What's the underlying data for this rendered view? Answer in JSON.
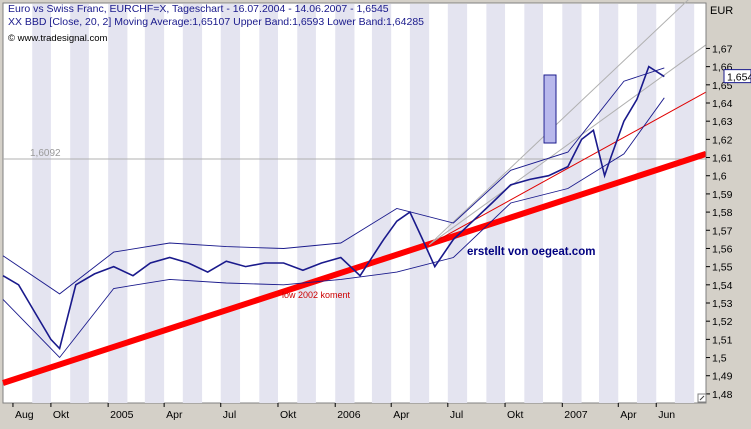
{
  "header": {
    "line1": "Euro vs Swiss Franc, EURCHF=X, Tageschart - 16.07.2004 - 14.06.2007 - 1,6545",
    "line2": "XX BBD [Close, 20, 2] Moving Average:1,65107 Upper Band:1,6593 Lower Band:1,64285",
    "copyright": "© www.tradesignal.com"
  },
  "colors": {
    "background": "#ffffff",
    "stripe": "#e4e4f0",
    "price": "#1a1a8c",
    "band": "#1a1a8c",
    "support_thick": "#ff0000",
    "support_thin": "#e00000",
    "channel": "#b0b0b0",
    "annotation_red": "#cc0000",
    "marker_fill": "#b8b8ec"
  },
  "chart_data": {
    "type": "line",
    "title": "Euro vs Swiss Franc, EURCHF=X, Tageschart - 16.07.2004 - 14.06.2007 - 1,6545",
    "ylabel": "EUR",
    "ylim": [
      1.475,
      1.695
    ],
    "xlim": [
      "2004-07-16",
      "2007-08-20"
    ],
    "x_ticks": [
      "Aug",
      "Okt",
      "2005",
      "Apr",
      "Jul",
      "Okt",
      "2006",
      "Apr",
      "Jul",
      "Okt",
      "2007",
      "Apr",
      "Jun"
    ],
    "y_ticks": [
      "1,48",
      "1,49",
      "1,5",
      "1,51",
      "1,52",
      "1,53",
      "1,54",
      "1,55",
      "1,56",
      "1,57",
      "1,58",
      "1,59",
      "1,6",
      "1,61",
      "1,62",
      "1,63",
      "1,64",
      "1,65",
      "1,66",
      "1,67"
    ],
    "last_value_label": "1,6545",
    "reference_label": "1,6092",
    "reference_value": 1.6092,
    "grid": false,
    "series": [
      {
        "name": "EURCHF=X",
        "x": [
          "2004-07-16",
          "2004-08-10",
          "2004-09-05",
          "2004-10-01",
          "2004-10-15",
          "2004-11-10",
          "2004-12-10",
          "2005-01-10",
          "2005-02-10",
          "2005-03-10",
          "2005-04-10",
          "2005-05-10",
          "2005-06-10",
          "2005-07-10",
          "2005-08-10",
          "2005-09-10",
          "2005-10-10",
          "2005-11-10",
          "2005-12-10",
          "2006-01-10",
          "2006-02-10",
          "2006-03-01",
          "2006-03-20",
          "2006-04-10",
          "2006-05-01",
          "2006-05-20",
          "2006-06-10",
          "2006-07-10",
          "2006-08-10",
          "2006-09-10",
          "2006-10-10",
          "2006-11-10",
          "2006-12-10",
          "2007-01-10",
          "2007-02-01",
          "2007-02-20",
          "2007-03-10",
          "2007-03-20",
          "2007-04-10",
          "2007-05-01",
          "2007-05-20",
          "2007-06-14"
        ],
        "y": [
          1.545,
          1.54,
          1.525,
          1.51,
          1.505,
          1.54,
          1.546,
          1.55,
          1.545,
          1.552,
          1.555,
          1.552,
          1.547,
          1.553,
          1.55,
          1.552,
          1.552,
          1.548,
          1.552,
          1.555,
          1.545,
          1.555,
          1.565,
          1.575,
          1.58,
          1.566,
          1.55,
          1.565,
          1.575,
          1.585,
          1.595,
          1.598,
          1.6,
          1.605,
          1.62,
          1.625,
          1.6,
          1.61,
          1.63,
          1.642,
          1.66,
          1.6545
        ]
      },
      {
        "name": "Upper Band",
        "x": [
          "2004-07-16",
          "2004-10-15",
          "2005-01-10",
          "2005-04-10",
          "2005-07-10",
          "2005-10-10",
          "2006-01-10",
          "2006-04-10",
          "2006-07-10",
          "2006-10-10",
          "2007-01-10",
          "2007-04-10",
          "2007-06-14"
        ],
        "y": [
          1.556,
          1.535,
          1.558,
          1.563,
          1.561,
          1.56,
          1.563,
          1.582,
          1.574,
          1.603,
          1.613,
          1.652,
          1.6593
        ]
      },
      {
        "name": "Lower Band",
        "x": [
          "2004-07-16",
          "2004-10-15",
          "2005-01-10",
          "2005-04-10",
          "2005-07-10",
          "2005-10-10",
          "2006-01-10",
          "2006-04-10",
          "2006-07-10",
          "2006-10-10",
          "2007-01-10",
          "2007-04-10",
          "2007-06-14"
        ],
        "y": [
          1.532,
          1.5,
          1.538,
          1.543,
          1.541,
          1.54,
          1.543,
          1.547,
          1.555,
          1.585,
          1.593,
          1.612,
          1.64285
        ]
      }
    ],
    "trendlines": [
      {
        "label": "low 2002 koment",
        "x": [
          "2004-07-16",
          "2007-08-20"
        ],
        "y": [
          1.486,
          1.612
        ]
      },
      {
        "label": "",
        "x": [
          "2006-06-01",
          "2007-08-20"
        ],
        "y": [
          1.562,
          1.646
        ]
      },
      {
        "label": "",
        "x": [
          "2006-06-01",
          "2007-08-20"
        ],
        "y": [
          1.562,
          1.672
        ]
      },
      {
        "label": "",
        "x": [
          "2006-06-01",
          "2007-08-20"
        ],
        "y": [
          1.562,
          1.706
        ]
      }
    ]
  },
  "annotations": {
    "watermark": "erstellt von oegeat.com",
    "trend_note": "low 2002 koment"
  }
}
